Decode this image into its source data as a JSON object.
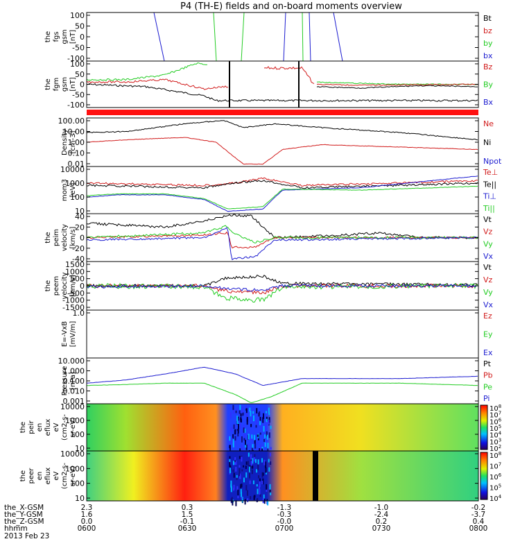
{
  "title": "P4 (TH-E) fields and on-board moments overview",
  "colors": {
    "black": "#000000",
    "red": "#d11a1a",
    "green": "#22cc22",
    "blue": "#1b1bd0",
    "bar": "#ff1111"
  },
  "chart_data": [
    {
      "type": "line",
      "id": "fgs",
      "ylabel": [
        "the",
        "fgs",
        "gsm",
        "[nT]"
      ],
      "yticks": [
        "100",
        "50",
        "0",
        "-50",
        "-100"
      ],
      "ylim": [
        -100,
        100
      ],
      "legend": [
        {
          "label": "Bt",
          "color": "#000000"
        },
        {
          "label": "bz",
          "color": "#d11a1a"
        },
        {
          "label": "by",
          "color": "#22cc22"
        },
        {
          "label": "bx",
          "color": "#1b1bd0"
        }
      ]
    },
    {
      "type": "line",
      "id": "fgm",
      "ylabel": [
        "the",
        "fgm",
        "gsm",
        "[nT]"
      ],
      "yticks": [
        "100",
        "50",
        "0",
        "-50",
        "-100"
      ],
      "ylim": [
        -120,
        120
      ],
      "legend": [
        {
          "label": "Bz",
          "color": "#d11a1a"
        },
        {
          "label": "By",
          "color": "#22cc22"
        },
        {
          "label": "Bx",
          "color": "#1b1bd0"
        }
      ]
    },
    {
      "type": "line",
      "id": "density",
      "ylabel": [
        "Density",
        "[cm-3]"
      ],
      "yticks": [
        "100.00",
        "10.00",
        "1.00",
        "0.10",
        "0.01"
      ],
      "log": true,
      "legend": [
        {
          "label": "Ne",
          "color": "#d11a1a"
        },
        {
          "label": "Ni",
          "color": "#000000"
        },
        {
          "label": "Npot",
          "color": "#1b1bd0"
        }
      ]
    },
    {
      "type": "line",
      "id": "temperature",
      "ylabel": [
        "mom3",
        "[eV]"
      ],
      "yticks": [
        "10000",
        "1000",
        "100",
        "10"
      ],
      "log": true,
      "legend": [
        {
          "label": "Te⊥",
          "color": "#d11a1a"
        },
        {
          "label": "Te||",
          "color": "#000000"
        },
        {
          "label": "Ti⊥",
          "color": "#1b1bd0"
        },
        {
          "label": "Ti||",
          "color": "#22cc22"
        }
      ]
    },
    {
      "type": "line",
      "id": "peim",
      "ylabel": [
        "the",
        "peim",
        "velocity",
        "[km/s]"
      ],
      "yticks": [
        "40",
        "20",
        "0",
        "-20",
        "-40"
      ],
      "ylim": [
        -40,
        40
      ],
      "legend": [
        {
          "label": "Vt",
          "color": "#000000"
        },
        {
          "label": "Vz",
          "color": "#d11a1a"
        },
        {
          "label": "Vy",
          "color": "#22cc22"
        },
        {
          "label": "Vx",
          "color": "#1b1bd0"
        }
      ]
    },
    {
      "type": "line",
      "id": "peem",
      "ylabel": [
        "the",
        "peem",
        "velocity",
        "[km/s]"
      ],
      "yticks": [
        "1500",
        "1000",
        "500",
        "0",
        "-500",
        "-1000",
        "-1500"
      ],
      "ylim": [
        -1500,
        1500
      ],
      "legend": [
        {
          "label": "Vt",
          "color": "#000000"
        },
        {
          "label": "Vz",
          "color": "#d11a1a"
        },
        {
          "label": "Vy",
          "color": "#22cc22"
        },
        {
          "label": "Vx",
          "color": "#1b1bd0"
        }
      ]
    },
    {
      "type": "line",
      "id": "efield",
      "ylabel": [
        "E=-VxB",
        "[mV/m]"
      ],
      "yticks": [
        "1.0"
      ],
      "legend": [
        {
          "label": "Ez",
          "color": "#d11a1a"
        },
        {
          "label": "Ey",
          "color": "#22cc22"
        },
        {
          "label": "Ex",
          "color": "#1b1bd0"
        }
      ]
    },
    {
      "type": "line",
      "id": "pressure",
      "ylabel": [
        "Pressure",
        "[nPa]"
      ],
      "yticks": [
        "10.000",
        "1.000",
        "0.100",
        "0.010",
        "0.001"
      ],
      "log": true,
      "legend": [
        {
          "label": "Pt",
          "color": "#000000"
        },
        {
          "label": "Pb",
          "color": "#d11a1a"
        },
        {
          "label": "Pe",
          "color": "#22cc22"
        },
        {
          "label": "Pi",
          "color": "#1b1bd0"
        }
      ]
    },
    {
      "type": "heatmap",
      "id": "peir",
      "ylabel": [
        "the",
        "peir",
        "en",
        "eflux",
        "eV",
        "(cm2-s-",
        "sr-eV)"
      ],
      "yticks": [
        "10000",
        "1000",
        "100",
        "10"
      ],
      "cbar_ticks": [
        "10^8",
        "10^7",
        "10^6",
        "10^5",
        "10^4",
        "10^3",
        "10^2"
      ]
    },
    {
      "type": "heatmap",
      "id": "peer",
      "ylabel": [
        "the",
        "peer",
        "en",
        "eflux",
        "eV",
        "(cm2-s-",
        "sr-eV)"
      ],
      "yticks": [
        "10000",
        "1000",
        "100",
        "10"
      ],
      "cbar_ticks": [
        "10^8",
        "10^7",
        "10^6",
        "10^5",
        "10^4"
      ]
    }
  ],
  "footer": {
    "rows": [
      {
        "label": "the_X-GSM",
        "values": [
          "2.3",
          "0.3",
          "-1.3",
          "-1.0",
          "-0.2"
        ]
      },
      {
        "label": "the_Y-GSM",
        "values": [
          "1.6",
          "1.5",
          "-0.3",
          "-2.4",
          "-3.7"
        ]
      },
      {
        "label": "the_Z-GSM",
        "values": [
          "0.0",
          "-0.1",
          "-0.0",
          "0.2",
          "0.4"
        ]
      },
      {
        "label": "hhmm",
        "values": [
          "0600",
          "0630",
          "0700",
          "0730",
          "0800"
        ]
      }
    ],
    "date": "2013 Feb 23"
  }
}
